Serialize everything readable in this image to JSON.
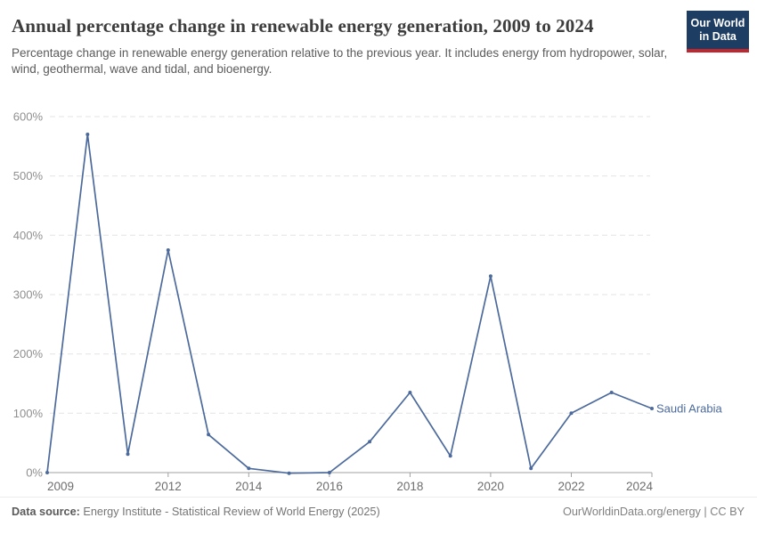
{
  "header": {
    "title": "Annual percentage change in renewable energy generation, 2009 to 2024",
    "subtitle": "Percentage change in renewable energy generation relative to the previous year. It includes energy from hydropower, solar, wind, geothermal, wave and tidal, and bioenergy."
  },
  "logo": {
    "line1": "Our World",
    "line2": "in Data",
    "bg_color": "#1d3d63",
    "accent_color": "#c0262d"
  },
  "chart_data": {
    "type": "line",
    "title": "Annual percentage change in renewable energy generation, 2009 to 2024",
    "x": [
      2009,
      2010,
      2011,
      2012,
      2013,
      2014,
      2015,
      2016,
      2017,
      2018,
      2019,
      2020,
      2021,
      2022,
      2023,
      2024
    ],
    "series": [
      {
        "name": "Saudi Arabia",
        "color": "#4c6a9c",
        "values": [
          0,
          570,
          31,
          375,
          64,
          7,
          -1,
          0,
          52,
          135,
          28,
          331,
          7,
          100,
          135,
          108
        ]
      }
    ],
    "ylabel": "",
    "xlabel": "",
    "ylim": [
      0,
      600
    ],
    "y_ticks": [
      0,
      100,
      200,
      300,
      400,
      500,
      600
    ],
    "y_tick_format": "%",
    "x_tick_labels": [
      2009,
      2012,
      2014,
      2016,
      2018,
      2020,
      2022,
      2024
    ],
    "grid": "horizontal-dashed",
    "legend_position": "end-of-line-label",
    "gridline_color": "#e3e3e3",
    "axis_color": "#a1a1a1",
    "y_tick_label_color": "#8f8f8f",
    "x_tick_label_color": "#6e6e6e"
  },
  "footer": {
    "data_source_label": "Data source:",
    "data_source_value": " Energy Institute - Statistical Review of World Energy (2025)",
    "credit": "OurWorldinData.org/energy | CC BY"
  }
}
